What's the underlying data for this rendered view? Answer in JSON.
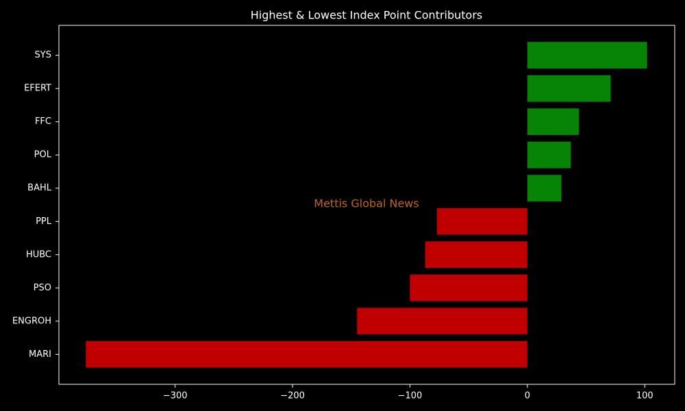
{
  "chart_data": {
    "type": "barh",
    "title": "Highest & Lowest Index Point Contributors",
    "annotation": "Mettis Global News",
    "categories": [
      "SYS",
      "EFERT",
      "FFC",
      "POL",
      "BAHL",
      "PPL",
      "HUBC",
      "PSO",
      "ENGROH",
      "MARI"
    ],
    "values": [
      102,
      71,
      44,
      37,
      29,
      -77,
      -87,
      -100,
      -145,
      -376
    ],
    "colors": [
      "#068406",
      "#068406",
      "#068406",
      "#068406",
      "#068406",
      "#c00000",
      "#c00000",
      "#c00000",
      "#c00000",
      "#c00000"
    ],
    "xlim": [
      -399,
      125.5
    ],
    "xticks": [
      {
        "value": -300,
        "label": "−300"
      },
      {
        "value": -200,
        "label": "−200"
      },
      {
        "value": -100,
        "label": "−100"
      },
      0,
      100
    ],
    "grid": false
  }
}
